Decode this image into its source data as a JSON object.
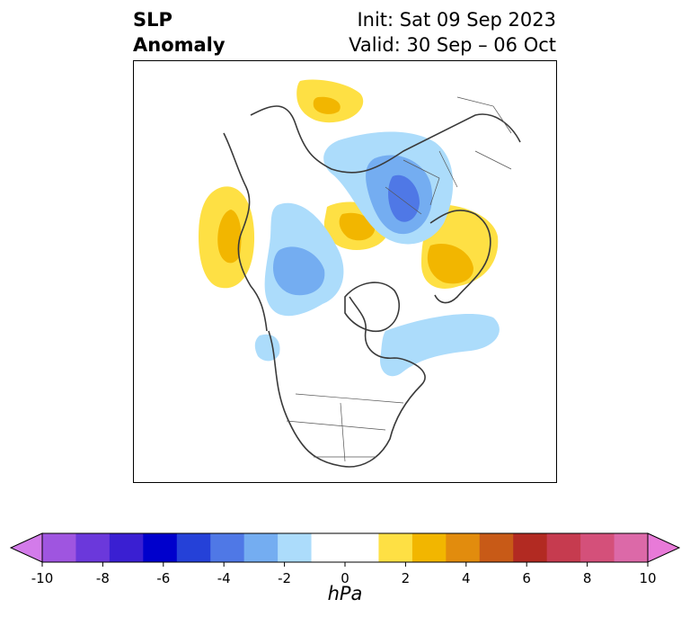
{
  "title": {
    "left_line1": "SLP",
    "left_line2": "Anomaly",
    "init": "Init: Sat 09 Sep 2023",
    "valid": "Valid: 30 Sep – 06 Oct"
  },
  "colorbar": {
    "unit": "hPa",
    "tick_labels": [
      "-10",
      "-8",
      "-6",
      "-4",
      "-2",
      "0",
      "2",
      "4",
      "6",
      "8",
      "10"
    ],
    "colors": [
      "#d37bea",
      "#9f55e0",
      "#6b38db",
      "#3a1fd2",
      "#0000cc",
      "#2541d8",
      "#4f78e6",
      "#74adf1",
      "#acdcfb",
      "#ffffff",
      "#fee044",
      "#f2b600",
      "#e28c0d",
      "#c85a17",
      "#b22a22",
      "#c63b4f",
      "#d4507a",
      "#dc69a8",
      "#e87ad8"
    ]
  },
  "map": {
    "projection": "north-polar-stereographic",
    "anomalies": [
      {
        "name": "pacific-positive",
        "sign": "positive"
      },
      {
        "name": "scandinavia-positive",
        "sign": "positive"
      },
      {
        "name": "siberia-positive",
        "sign": "positive"
      },
      {
        "name": "europe-positive",
        "sign": "positive"
      },
      {
        "name": "russia-negative",
        "sign": "negative"
      },
      {
        "name": "alaska-negative",
        "sign": "negative"
      },
      {
        "name": "atlantic-negative",
        "sign": "negative"
      }
    ]
  }
}
